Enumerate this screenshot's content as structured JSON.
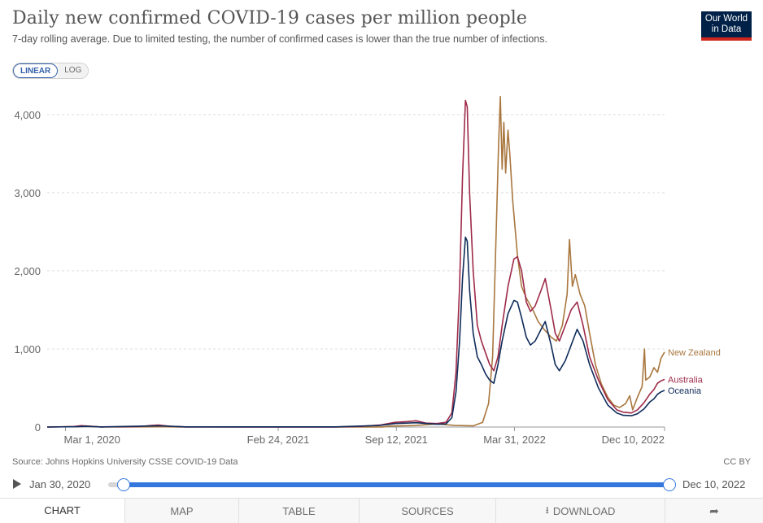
{
  "header": {
    "title": "Daily new confirmed COVID-19 cases per million people",
    "subtitle": "7-day rolling average. Due to limited testing, the number of confirmed cases is lower than the true number of infections.",
    "logo": {
      "line1": "Our World",
      "line2": "in Data"
    }
  },
  "scale_toggle": {
    "linear": "LINEAR",
    "log": "LOG",
    "selected": "LINEAR"
  },
  "footer": {
    "source": "Source: Johns Hopkins University CSSE COVID-19 Data",
    "license": "CC BY"
  },
  "timeline": {
    "start_label": "Jan 30, 2020",
    "end_label": "Dec 10, 2022"
  },
  "tabs": [
    {
      "label": "CHART"
    },
    {
      "label": "MAP"
    },
    {
      "label": "TABLE"
    },
    {
      "label": "SOURCES"
    },
    {
      "label": "DOWNLOAD"
    }
  ],
  "colors": {
    "australia": "#9e2a4a",
    "new_zealand": "#a9773f",
    "oceania": "#0f2c5a",
    "grid": "#dddddd",
    "axis": "#666666"
  },
  "chart_data": {
    "type": "line",
    "title": "Daily new confirmed COVID-19 cases per million people",
    "xlabel": "",
    "ylabel": "",
    "x_start": "2020-01-30",
    "x_end": "2022-12-10",
    "ylim": [
      0,
      4300
    ],
    "y_ticks": [
      0,
      1000,
      2000,
      3000,
      4000
    ],
    "y_tick_labels": [
      "0",
      "1,000",
      "2,000",
      "3,000",
      "4,000"
    ],
    "x_ticks": [
      {
        "date": "2020-03-01",
        "label": "Mar 1, 2020"
      },
      {
        "date": "2021-02-24",
        "label": "Feb 24, 2021"
      },
      {
        "date": "2021-09-12",
        "label": "Sep 12, 2021"
      },
      {
        "date": "2022-03-31",
        "label": "Mar 31, 2022"
      },
      {
        "date": "2022-12-10",
        "label": "Dec 10, 2022"
      }
    ],
    "grid": true,
    "legend": "inline-right",
    "series": [
      {
        "name": "New Zealand",
        "color_key": "new_zealand",
        "points": [
          [
            "2020-01-30",
            0
          ],
          [
            "2020-03-20",
            5
          ],
          [
            "2020-04-05",
            14
          ],
          [
            "2020-04-25",
            3
          ],
          [
            "2020-06-01",
            0
          ],
          [
            "2020-08-15",
            3
          ],
          [
            "2020-09-10",
            1
          ],
          [
            "2021-01-01",
            1
          ],
          [
            "2021-08-20",
            1
          ],
          [
            "2021-09-01",
            12
          ],
          [
            "2021-10-15",
            20
          ],
          [
            "2021-11-20",
            40
          ],
          [
            "2021-12-20",
            20
          ],
          [
            "2022-01-20",
            15
          ],
          [
            "2022-02-05",
            60
          ],
          [
            "2022-02-15",
            300
          ],
          [
            "2022-02-22",
            900
          ],
          [
            "2022-02-28",
            2500
          ],
          [
            "2022-03-04",
            3600
          ],
          [
            "2022-03-07",
            4230
          ],
          [
            "2022-03-10",
            3300
          ],
          [
            "2022-03-13",
            3900
          ],
          [
            "2022-03-16",
            3250
          ],
          [
            "2022-03-20",
            3800
          ],
          [
            "2022-03-23",
            3500
          ],
          [
            "2022-03-28",
            2900
          ],
          [
            "2022-04-05",
            2200
          ],
          [
            "2022-04-12",
            1800
          ],
          [
            "2022-04-20",
            1650
          ],
          [
            "2022-05-01",
            1500
          ],
          [
            "2022-05-10",
            1350
          ],
          [
            "2022-05-20",
            1250
          ],
          [
            "2022-06-01",
            1150
          ],
          [
            "2022-06-10",
            1100
          ],
          [
            "2022-06-20",
            1300
          ],
          [
            "2022-06-28",
            1700
          ],
          [
            "2022-07-02",
            2400
          ],
          [
            "2022-07-07",
            1800
          ],
          [
            "2022-07-12",
            1950
          ],
          [
            "2022-07-20",
            1700
          ],
          [
            "2022-07-28",
            1550
          ],
          [
            "2022-08-05",
            1200
          ],
          [
            "2022-08-15",
            800
          ],
          [
            "2022-08-25",
            550
          ],
          [
            "2022-09-05",
            380
          ],
          [
            "2022-09-15",
            280
          ],
          [
            "2022-09-25",
            250
          ],
          [
            "2022-10-05",
            300
          ],
          [
            "2022-10-12",
            400
          ],
          [
            "2022-10-17",
            220
          ],
          [
            "2022-10-25",
            380
          ],
          [
            "2022-11-02",
            520
          ],
          [
            "2022-11-06",
            1000
          ],
          [
            "2022-11-08",
            600
          ],
          [
            "2022-11-15",
            640
          ],
          [
            "2022-11-22",
            760
          ],
          [
            "2022-11-28",
            700
          ],
          [
            "2022-12-04",
            880
          ],
          [
            "2022-12-10",
            960
          ]
        ]
      },
      {
        "name": "Australia",
        "color_key": "australia",
        "points": [
          [
            "2020-01-30",
            0
          ],
          [
            "2020-03-15",
            6
          ],
          [
            "2020-03-28",
            18
          ],
          [
            "2020-04-10",
            10
          ],
          [
            "2020-05-01",
            1
          ],
          [
            "2020-07-01",
            5
          ],
          [
            "2020-07-25",
            20
          ],
          [
            "2020-08-05",
            25
          ],
          [
            "2020-08-25",
            10
          ],
          [
            "2020-09-20",
            2
          ],
          [
            "2020-12-31",
            1
          ],
          [
            "2021-06-01",
            1
          ],
          [
            "2021-07-15",
            8
          ],
          [
            "2021-08-15",
            25
          ],
          [
            "2021-09-10",
            60
          ],
          [
            "2021-10-01",
            70
          ],
          [
            "2021-10-15",
            80
          ],
          [
            "2021-11-01",
            50
          ],
          [
            "2021-11-20",
            45
          ],
          [
            "2021-12-05",
            60
          ],
          [
            "2021-12-15",
            180
          ],
          [
            "2021-12-22",
            700
          ],
          [
            "2021-12-28",
            1800
          ],
          [
            "2022-01-02",
            3200
          ],
          [
            "2022-01-07",
            4180
          ],
          [
            "2022-01-10",
            4100
          ],
          [
            "2022-01-14",
            3000
          ],
          [
            "2022-01-20",
            2000
          ],
          [
            "2022-01-27",
            1300
          ],
          [
            "2022-02-03",
            1100
          ],
          [
            "2022-02-10",
            950
          ],
          [
            "2022-02-17",
            800
          ],
          [
            "2022-02-24",
            720
          ],
          [
            "2022-03-03",
            900
          ],
          [
            "2022-03-10",
            1300
          ],
          [
            "2022-03-20",
            1800
          ],
          [
            "2022-03-30",
            2150
          ],
          [
            "2022-04-05",
            2180
          ],
          [
            "2022-04-12",
            2000
          ],
          [
            "2022-04-20",
            1600
          ],
          [
            "2022-04-27",
            1480
          ],
          [
            "2022-05-05",
            1550
          ],
          [
            "2022-05-15",
            1750
          ],
          [
            "2022-05-22",
            1900
          ],
          [
            "2022-06-01",
            1500
          ],
          [
            "2022-06-08",
            1200
          ],
          [
            "2022-06-15",
            1100
          ],
          [
            "2022-06-25",
            1300
          ],
          [
            "2022-07-05",
            1500
          ],
          [
            "2022-07-15",
            1600
          ],
          [
            "2022-07-25",
            1300
          ],
          [
            "2022-08-05",
            900
          ],
          [
            "2022-08-20",
            600
          ],
          [
            "2022-09-05",
            350
          ],
          [
            "2022-09-20",
            220
          ],
          [
            "2022-10-01",
            190
          ],
          [
            "2022-10-15",
            180
          ],
          [
            "2022-10-25",
            220
          ],
          [
            "2022-11-05",
            310
          ],
          [
            "2022-11-15",
            420
          ],
          [
            "2022-11-22",
            480
          ],
          [
            "2022-11-28",
            560
          ],
          [
            "2022-12-04",
            590
          ],
          [
            "2022-12-10",
            610
          ]
        ]
      },
      {
        "name": "Oceania",
        "color_key": "oceania",
        "points": [
          [
            "2020-01-30",
            0
          ],
          [
            "2020-03-20",
            4
          ],
          [
            "2020-04-05",
            9
          ],
          [
            "2020-05-01",
            1
          ],
          [
            "2020-07-25",
            14
          ],
          [
            "2020-08-05",
            16
          ],
          [
            "2020-09-20",
            2
          ],
          [
            "2021-06-01",
            2
          ],
          [
            "2021-08-15",
            20
          ],
          [
            "2021-09-10",
            45
          ],
          [
            "2021-10-15",
            55
          ],
          [
            "2021-11-20",
            35
          ],
          [
            "2021-12-05",
            40
          ],
          [
            "2021-12-15",
            120
          ],
          [
            "2021-12-22",
            450
          ],
          [
            "2021-12-28",
            1100
          ],
          [
            "2022-01-02",
            1900
          ],
          [
            "2022-01-07",
            2430
          ],
          [
            "2022-01-10",
            2380
          ],
          [
            "2022-01-14",
            1750
          ],
          [
            "2022-01-20",
            1200
          ],
          [
            "2022-01-27",
            900
          ],
          [
            "2022-02-03",
            800
          ],
          [
            "2022-02-10",
            680
          ],
          [
            "2022-02-17",
            600
          ],
          [
            "2022-02-24",
            560
          ],
          [
            "2022-03-03",
            800
          ],
          [
            "2022-03-10",
            1100
          ],
          [
            "2022-03-20",
            1450
          ],
          [
            "2022-03-30",
            1620
          ],
          [
            "2022-04-05",
            1600
          ],
          [
            "2022-04-12",
            1400
          ],
          [
            "2022-04-20",
            1150
          ],
          [
            "2022-04-27",
            1050
          ],
          [
            "2022-05-05",
            1100
          ],
          [
            "2022-05-15",
            1250
          ],
          [
            "2022-05-22",
            1350
          ],
          [
            "2022-06-01",
            1050
          ],
          [
            "2022-06-08",
            800
          ],
          [
            "2022-06-15",
            720
          ],
          [
            "2022-06-25",
            850
          ],
          [
            "2022-07-05",
            1050
          ],
          [
            "2022-07-15",
            1250
          ],
          [
            "2022-07-25",
            1100
          ],
          [
            "2022-08-05",
            800
          ],
          [
            "2022-08-20",
            500
          ],
          [
            "2022-09-05",
            280
          ],
          [
            "2022-09-20",
            180
          ],
          [
            "2022-10-01",
            150
          ],
          [
            "2022-10-15",
            145
          ],
          [
            "2022-10-25",
            170
          ],
          [
            "2022-11-05",
            230
          ],
          [
            "2022-11-15",
            320
          ],
          [
            "2022-11-22",
            360
          ],
          [
            "2022-11-28",
            420
          ],
          [
            "2022-12-04",
            450
          ],
          [
            "2022-12-10",
            470
          ]
        ]
      }
    ]
  }
}
